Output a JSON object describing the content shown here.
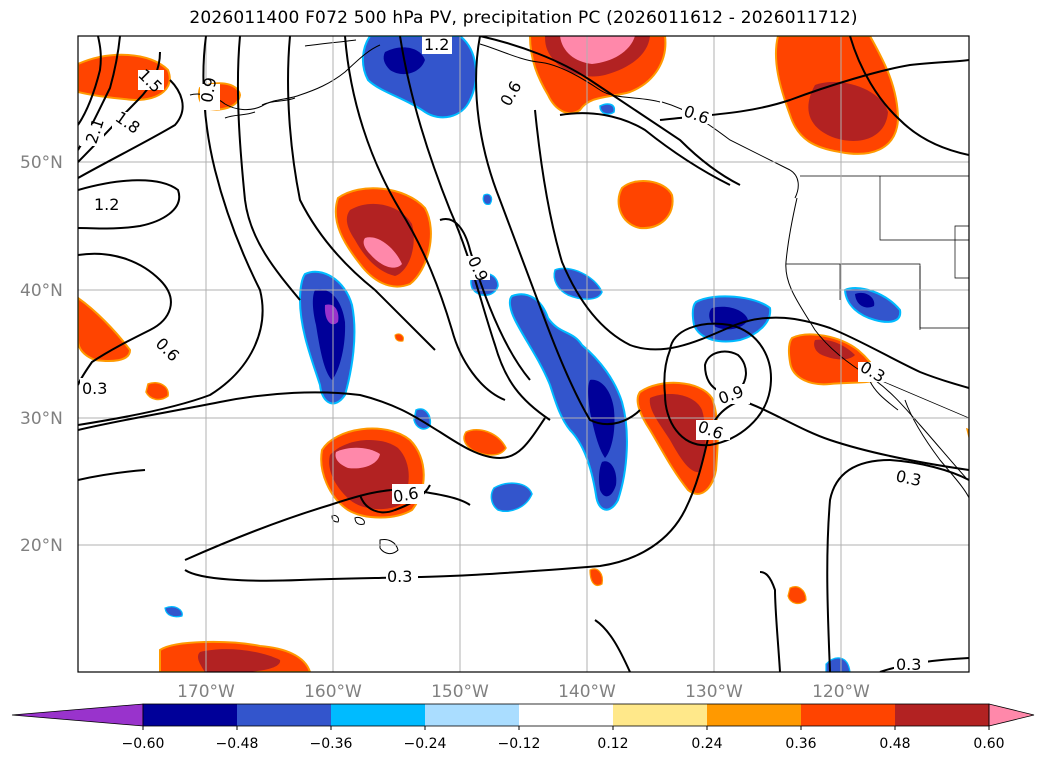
{
  "title": "2026011400 F072 500 hPa PV, precipitation PC (2026011612 - 2026011712)",
  "lat_labels": [
    "50°N",
    "40°N",
    "30°N",
    "20°N"
  ],
  "lon_labels": [
    "170°W",
    "160°W",
    "150°W",
    "140°W",
    "130°W",
    "120°W"
  ],
  "contour_labels": [
    "2.1",
    "1.8",
    "1.5",
    "1.2",
    "1.2",
    "0.9",
    "0.6",
    "0.9",
    "0.6",
    "0.3",
    "0.6",
    "0.3",
    "0.6",
    "0.9",
    "0.6",
    "0.3",
    "0.3",
    "0.3"
  ],
  "colorbar": {
    "ticks": [
      "−0.60",
      "−0.48",
      "−0.36",
      "−0.24",
      "−0.12",
      "0.12",
      "0.24",
      "0.36",
      "0.48",
      "0.60"
    ],
    "colors": [
      "#9933cc",
      "#000099",
      "#3355cc",
      "#00bbff",
      "#aaddff",
      "#ffffff",
      "#ffe88a",
      "#ff9900",
      "#ff4400",
      "#b22222",
      "#ff88aa"
    ]
  },
  "colors": {
    "positive_high": "#ff88aa",
    "positive_mid": "#b22222",
    "positive_low": "#ff4400",
    "positive_edge": "#ff9900",
    "negative_low": "#3355cc",
    "negative_high": "#000099",
    "negative_edge": "#00bbff",
    "grid": "#b0b0b0",
    "contour": "#000000"
  }
}
